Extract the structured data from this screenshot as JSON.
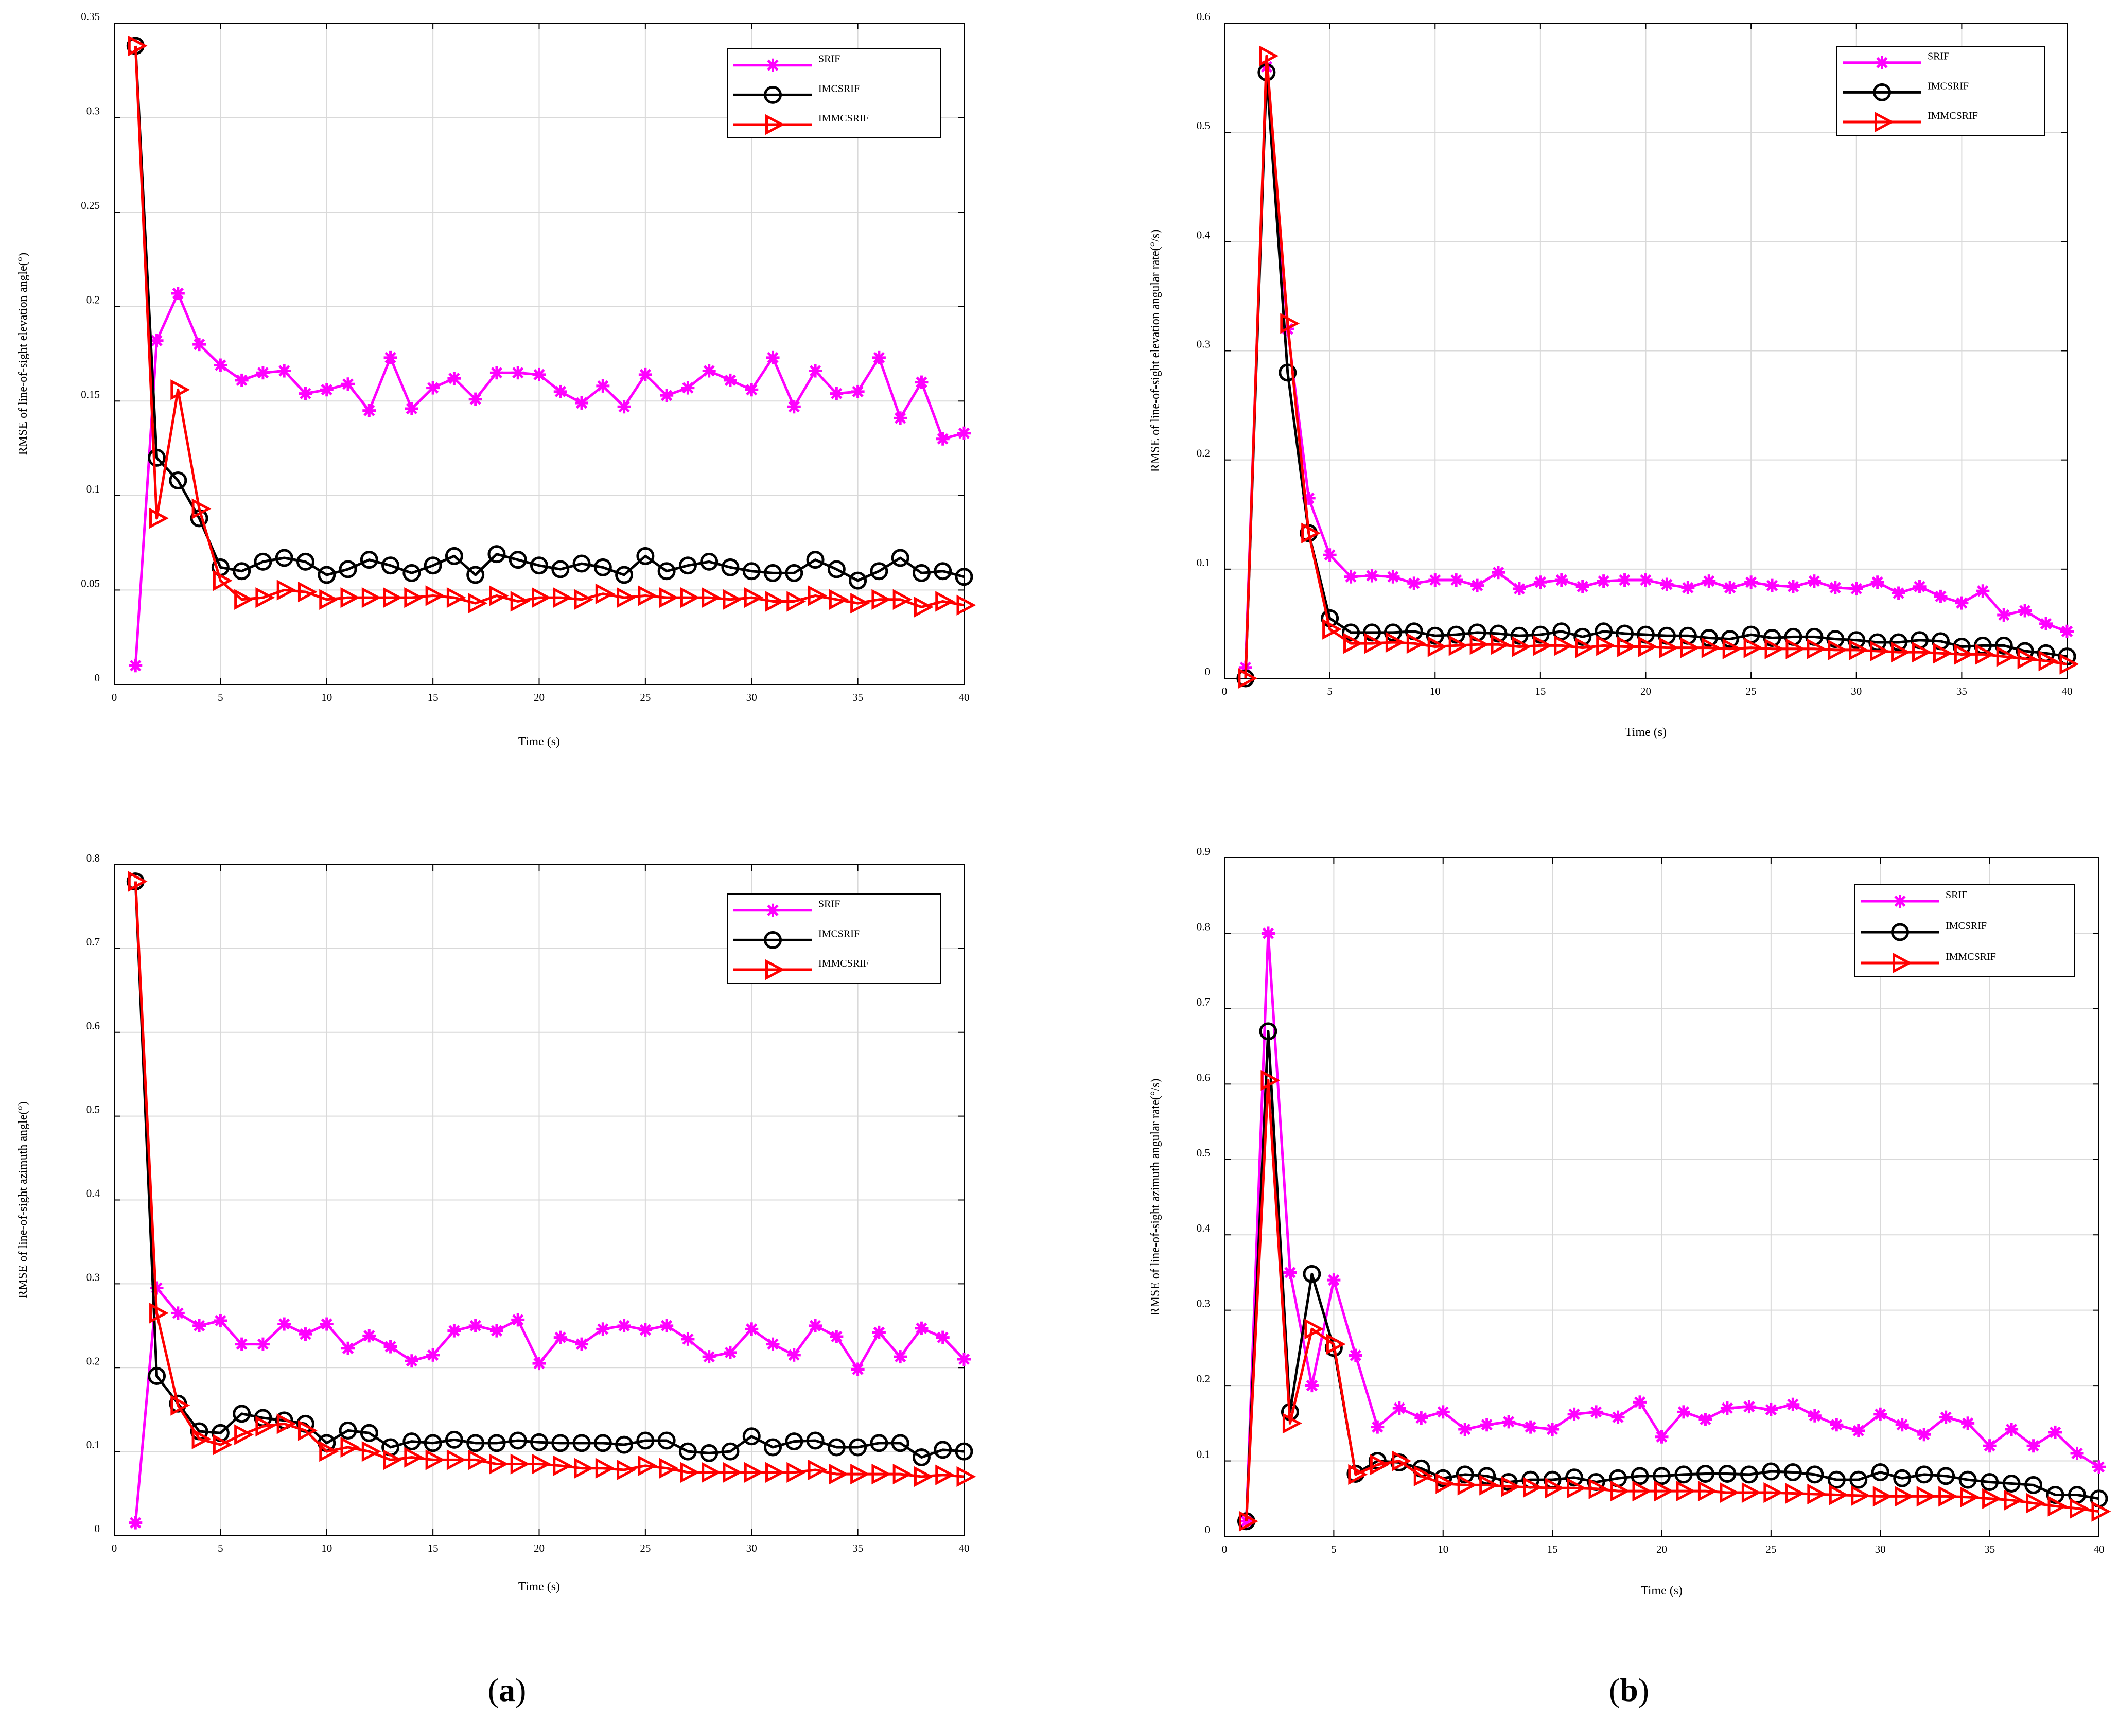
{
  "chart_data": [
    {
      "id": "a-top",
      "type": "line",
      "xlabel": "Time (s)",
      "ylabel": "RMSE of line-of-sight elevation angle(°)",
      "xlim": [
        0,
        40
      ],
      "ylim": [
        0,
        0.35
      ],
      "xticks": [
        0,
        5,
        10,
        15,
        20,
        25,
        30,
        35,
        40
      ],
      "yticks": [
        0,
        0.05,
        0.1,
        0.15,
        0.2,
        0.25,
        0.3,
        0.35
      ],
      "ytick_labels": [
        "0",
        "0.05",
        "0.1",
        "0.15",
        "0.2",
        "0.25",
        "0.3",
        "0.35"
      ],
      "grid": true,
      "legend_position": "top-right",
      "series": [
        {
          "name": "SRIF",
          "color": "#ff00ff",
          "marker": "asterisk",
          "values": [
            0.01,
            0.182,
            0.207,
            0.18,
            0.169,
            0.161,
            0.165,
            0.166,
            0.154,
            0.156,
            0.159,
            0.145,
            0.173,
            0.146,
            0.157,
            0.162,
            0.151,
            0.165,
            0.165,
            0.164,
            0.155,
            0.149,
            0.158,
            0.147,
            0.164,
            0.153,
            0.157,
            0.166,
            0.161,
            0.156,
            0.173,
            0.147,
            0.166,
            0.154,
            0.155,
            0.173,
            0.141,
            0.16,
            0.13,
            0.133
          ]
        },
        {
          "name": "IMCSRIF",
          "color": "#000000",
          "marker": "circle",
          "values": [
            0.338,
            0.12,
            0.108,
            0.088,
            0.062,
            0.06,
            0.065,
            0.067,
            0.065,
            0.058,
            0.061,
            0.066,
            0.063,
            0.059,
            0.063,
            0.068,
            0.058,
            0.069,
            0.066,
            0.063,
            0.061,
            0.064,
            0.062,
            0.058,
            0.068,
            0.06,
            0.063,
            0.065,
            0.062,
            0.06,
            0.059,
            0.059,
            0.066,
            0.061,
            0.055,
            0.06,
            0.067,
            0.059,
            0.06,
            0.057
          ]
        },
        {
          "name": "IMMCSRIF",
          "color": "#ff0000",
          "marker": "triangle-right",
          "values": [
            0.338,
            0.088,
            0.156,
            0.093,
            0.055,
            0.045,
            0.046,
            0.05,
            0.049,
            0.045,
            0.046,
            0.046,
            0.046,
            0.046,
            0.047,
            0.046,
            0.043,
            0.047,
            0.044,
            0.046,
            0.046,
            0.045,
            0.048,
            0.046,
            0.047,
            0.046,
            0.046,
            0.046,
            0.045,
            0.046,
            0.044,
            0.044,
            0.047,
            0.045,
            0.043,
            0.045,
            0.045,
            0.041,
            0.044,
            0.042
          ]
        }
      ]
    },
    {
      "id": "b-top",
      "type": "line",
      "xlabel": "Time (s)",
      "ylabel": "RMSE of line-of-sight elevation angular rate(°/s)",
      "xlim": [
        0,
        40
      ],
      "ylim": [
        0,
        0.6
      ],
      "xticks": [
        0,
        5,
        10,
        15,
        20,
        25,
        30,
        35,
        40
      ],
      "yticks": [
        0,
        0.1,
        0.2,
        0.3,
        0.4,
        0.5,
        0.6
      ],
      "ytick_labels": [
        "0",
        "0.1",
        "0.2",
        "0.3",
        "0.4",
        "0.5",
        "0.6"
      ],
      "grid": true,
      "legend_position": "top-right",
      "series": [
        {
          "name": "SRIF",
          "color": "#ff00ff",
          "marker": "asterisk",
          "values": [
            0.01,
            0.56,
            0.32,
            0.165,
            0.113,
            0.093,
            0.094,
            0.093,
            0.087,
            0.09,
            0.09,
            0.085,
            0.097,
            0.082,
            0.088,
            0.09,
            0.084,
            0.089,
            0.09,
            0.09,
            0.086,
            0.083,
            0.089,
            0.083,
            0.088,
            0.085,
            0.084,
            0.089,
            0.083,
            0.082,
            0.088,
            0.078,
            0.084,
            0.075,
            0.069,
            0.08,
            0.058,
            0.062,
            0.05,
            0.043
          ]
        },
        {
          "name": "IMCSRIF",
          "color": "#000000",
          "marker": "circle",
          "values": [
            0.0,
            0.555,
            0.28,
            0.133,
            0.055,
            0.042,
            0.042,
            0.042,
            0.043,
            0.039,
            0.04,
            0.042,
            0.041,
            0.039,
            0.04,
            0.043,
            0.038,
            0.043,
            0.041,
            0.04,
            0.039,
            0.039,
            0.037,
            0.036,
            0.04,
            0.037,
            0.038,
            0.038,
            0.036,
            0.035,
            0.033,
            0.033,
            0.035,
            0.034,
            0.029,
            0.03,
            0.03,
            0.025,
            0.023,
            0.02
          ]
        },
        {
          "name": "IMMCSRIF",
          "color": "#ff0000",
          "marker": "triangle-right",
          "values": [
            0.0,
            0.57,
            0.325,
            0.133,
            0.045,
            0.032,
            0.032,
            0.033,
            0.032,
            0.029,
            0.03,
            0.031,
            0.031,
            0.029,
            0.03,
            0.03,
            0.028,
            0.03,
            0.029,
            0.029,
            0.028,
            0.028,
            0.028,
            0.027,
            0.028,
            0.027,
            0.027,
            0.027,
            0.026,
            0.026,
            0.025,
            0.024,
            0.024,
            0.023,
            0.022,
            0.022,
            0.02,
            0.018,
            0.016,
            0.013
          ]
        }
      ]
    },
    {
      "id": "a-bottom",
      "type": "line",
      "xlabel": "Time (s)",
      "ylabel": "RMSE of line-of-sight azimuth angle(°)",
      "xlim": [
        0,
        40
      ],
      "ylim": [
        0,
        0.8
      ],
      "xticks": [
        0,
        5,
        10,
        15,
        20,
        25,
        30,
        35,
        40
      ],
      "yticks": [
        0,
        0.1,
        0.2,
        0.3,
        0.4,
        0.5,
        0.6,
        0.7,
        0.8
      ],
      "ytick_labels": [
        "0",
        "0.1",
        "0.2",
        "0.3",
        "0.4",
        "0.5",
        "0.6",
        "0.7",
        "0.8"
      ],
      "grid": true,
      "legend_position": "top-right",
      "series": [
        {
          "name": "SRIF",
          "color": "#ff00ff",
          "marker": "asterisk",
          "values": [
            0.015,
            0.295,
            0.265,
            0.25,
            0.256,
            0.228,
            0.228,
            0.252,
            0.24,
            0.252,
            0.223,
            0.238,
            0.225,
            0.208,
            0.215,
            0.244,
            0.25,
            0.244,
            0.257,
            0.205,
            0.236,
            0.228,
            0.246,
            0.25,
            0.245,
            0.25,
            0.234,
            0.213,
            0.218,
            0.246,
            0.228,
            0.215,
            0.25,
            0.237,
            0.198,
            0.242,
            0.213,
            0.247,
            0.236,
            0.21
          ]
        },
        {
          "name": "IMCSRIF",
          "color": "#000000",
          "marker": "circle",
          "values": [
            0.78,
            0.19,
            0.157,
            0.124,
            0.122,
            0.145,
            0.14,
            0.137,
            0.133,
            0.11,
            0.125,
            0.122,
            0.105,
            0.112,
            0.11,
            0.114,
            0.11,
            0.11,
            0.113,
            0.111,
            0.11,
            0.11,
            0.11,
            0.108,
            0.113,
            0.113,
            0.1,
            0.098,
            0.1,
            0.118,
            0.105,
            0.112,
            0.113,
            0.105,
            0.105,
            0.11,
            0.11,
            0.093,
            0.102,
            0.1
          ]
        },
        {
          "name": "IMMCSRIF",
          "color": "#ff0000",
          "marker": "triangle-right",
          "values": [
            0.78,
            0.265,
            0.155,
            0.115,
            0.108,
            0.12,
            0.13,
            0.133,
            0.125,
            0.1,
            0.105,
            0.1,
            0.09,
            0.093,
            0.09,
            0.09,
            0.09,
            0.085,
            0.085,
            0.085,
            0.083,
            0.08,
            0.08,
            0.078,
            0.083,
            0.08,
            0.075,
            0.075,
            0.075,
            0.075,
            0.075,
            0.075,
            0.078,
            0.073,
            0.073,
            0.073,
            0.073,
            0.07,
            0.072,
            0.07
          ]
        }
      ]
    },
    {
      "id": "b-bottom",
      "type": "line",
      "xlabel": "Time (s)",
      "ylabel": "RMSE of line-of-sight azimuth angular rate(°/s)",
      "xlim": [
        0,
        40
      ],
      "ylim": [
        0,
        0.9
      ],
      "xticks": [
        0,
        5,
        10,
        15,
        20,
        25,
        30,
        35,
        40
      ],
      "yticks": [
        0,
        0.1,
        0.2,
        0.3,
        0.4,
        0.5,
        0.6,
        0.7,
        0.8,
        0.9
      ],
      "ytick_labels": [
        "0",
        "0.1",
        "0.2",
        "0.3",
        "0.4",
        "0.5",
        "0.6",
        "0.7",
        "0.8",
        "0.9"
      ],
      "grid": true,
      "legend_position": "top-right",
      "series": [
        {
          "name": "SRIF",
          "color": "#ff00ff",
          "marker": "asterisk",
          "values": [
            0.02,
            0.8,
            0.35,
            0.2,
            0.34,
            0.24,
            0.145,
            0.17,
            0.157,
            0.165,
            0.142,
            0.148,
            0.152,
            0.145,
            0.142,
            0.162,
            0.165,
            0.158,
            0.178,
            0.132,
            0.165,
            0.155,
            0.17,
            0.172,
            0.168,
            0.175,
            0.16,
            0.148,
            0.14,
            0.162,
            0.148,
            0.135,
            0.158,
            0.15,
            0.12,
            0.142,
            0.12,
            0.138,
            0.11,
            0.092
          ]
        },
        {
          "name": "IMCSRIF",
          "color": "#000000",
          "marker": "circle",
          "values": [
            0.02,
            0.67,
            0.165,
            0.348,
            0.25,
            0.083,
            0.1,
            0.098,
            0.09,
            0.077,
            0.082,
            0.08,
            0.072,
            0.075,
            0.075,
            0.078,
            0.072,
            0.077,
            0.08,
            0.08,
            0.082,
            0.083,
            0.083,
            0.082,
            0.086,
            0.085,
            0.082,
            0.075,
            0.075,
            0.085,
            0.077,
            0.082,
            0.08,
            0.075,
            0.072,
            0.07,
            0.068,
            0.055,
            0.055,
            0.05
          ]
        },
        {
          "name": "IMMCSRIF",
          "color": "#ff0000",
          "marker": "triangle-right",
          "values": [
            0.02,
            0.605,
            0.15,
            0.275,
            0.255,
            0.082,
            0.095,
            0.1,
            0.08,
            0.07,
            0.068,
            0.068,
            0.066,
            0.065,
            0.064,
            0.064,
            0.063,
            0.06,
            0.06,
            0.06,
            0.06,
            0.06,
            0.058,
            0.058,
            0.058,
            0.057,
            0.056,
            0.055,
            0.054,
            0.053,
            0.053,
            0.053,
            0.053,
            0.052,
            0.05,
            0.048,
            0.044,
            0.04,
            0.037,
            0.033
          ]
        }
      ]
    }
  ],
  "captions": {
    "a": {
      "open": "(",
      "letter": "a",
      "close": ")"
    },
    "b": {
      "open": "(",
      "letter": "b",
      "close": ")"
    }
  }
}
